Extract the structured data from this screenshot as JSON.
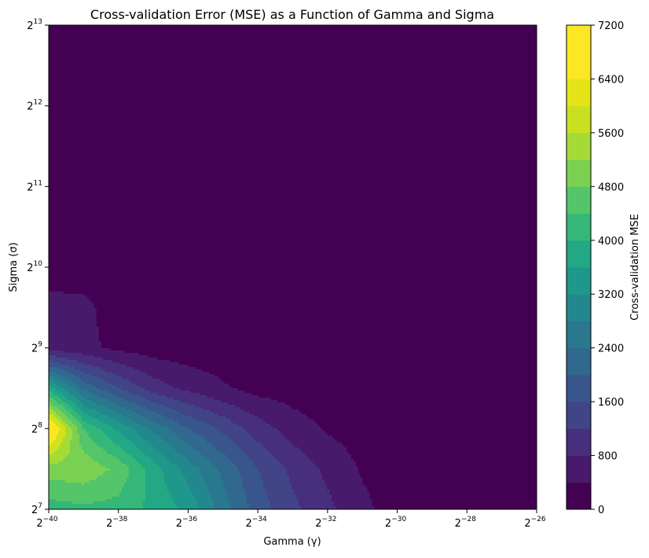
{
  "chart_data": {
    "type": "heatmap",
    "subtype": "filled-contour",
    "title": "Cross-validation Error (MSE) as a Function of Gamma and Sigma",
    "xlabel": "Gamma (γ)",
    "ylabel": "Sigma (σ)",
    "x_scale": "log2",
    "y_scale": "log2",
    "xlim_exponent": [
      -40,
      -26
    ],
    "ylim_exponent": [
      7,
      13
    ],
    "x_ticks": [
      {
        "base": "2",
        "exp": "−40"
      },
      {
        "base": "2",
        "exp": "−38"
      },
      {
        "base": "2",
        "exp": "−36"
      },
      {
        "base": "2",
        "exp": "−34"
      },
      {
        "base": "2",
        "exp": "−32"
      },
      {
        "base": "2",
        "exp": "−30"
      },
      {
        "base": "2",
        "exp": "−28"
      },
      {
        "base": "2",
        "exp": "−26"
      }
    ],
    "y_ticks": [
      {
        "base": "2",
        "exp": "7"
      },
      {
        "base": "2",
        "exp": "8"
      },
      {
        "base": "2",
        "exp": "9"
      },
      {
        "base": "2",
        "exp": "10"
      },
      {
        "base": "2",
        "exp": "11"
      },
      {
        "base": "2",
        "exp": "12"
      },
      {
        "base": "2",
        "exp": "13"
      }
    ],
    "x_exponents": [
      -40,
      -39,
      -38,
      -37,
      -36,
      -35,
      -34,
      -33,
      -32,
      -31,
      -30,
      -29,
      -28,
      -27,
      -26
    ],
    "y_exponents": [
      7,
      7.5,
      8,
      8.5,
      9,
      9.5,
      10,
      10.5,
      11,
      11.5,
      12,
      12.5,
      13
    ],
    "z_values": [
      [
        4200,
        4300,
        4250,
        3900,
        3500,
        2600,
        1800,
        1300,
        900,
        500,
        200,
        150,
        150,
        150,
        150
      ],
      [
        5000,
        5100,
        4700,
        3800,
        3000,
        2300,
        1600,
        1100,
        700,
        350,
        200,
        150,
        150,
        150,
        150
      ],
      [
        6800,
        4400,
        3500,
        2700,
        2000,
        1500,
        1000,
        600,
        350,
        200,
        150,
        150,
        150,
        150,
        150
      ],
      [
        3800,
        2300,
        1600,
        1000,
        700,
        450,
        250,
        200,
        150,
        150,
        150,
        150,
        150,
        150,
        150
      ],
      [
        600,
        500,
        300,
        200,
        150,
        150,
        150,
        150,
        150,
        150,
        150,
        150,
        150,
        150,
        150
      ],
      [
        560,
        520,
        150,
        150,
        150,
        150,
        150,
        150,
        150,
        150,
        150,
        150,
        150,
        150,
        150
      ],
      [
        150,
        150,
        150,
        150,
        150,
        150,
        150,
        150,
        150,
        150,
        150,
        150,
        150,
        150,
        150
      ],
      [
        150,
        150,
        150,
        150,
        150,
        150,
        150,
        150,
        150,
        150,
        150,
        150,
        150,
        150,
        150
      ],
      [
        150,
        150,
        150,
        150,
        150,
        150,
        150,
        150,
        150,
        150,
        150,
        150,
        150,
        150,
        150
      ],
      [
        150,
        150,
        150,
        150,
        150,
        150,
        150,
        150,
        150,
        150,
        150,
        150,
        150,
        150,
        150
      ],
      [
        150,
        150,
        150,
        150,
        150,
        150,
        150,
        150,
        150,
        150,
        150,
        150,
        150,
        150,
        150
      ],
      [
        150,
        150,
        150,
        150,
        150,
        150,
        150,
        150,
        150,
        150,
        150,
        150,
        150,
        150,
        150
      ],
      [
        150,
        150,
        150,
        150,
        150,
        150,
        150,
        150,
        150,
        150,
        150,
        150,
        150,
        150,
        150
      ]
    ],
    "levels": [
      0,
      400,
      800,
      1200,
      1600,
      2000,
      2400,
      2800,
      3200,
      3600,
      4000,
      4400,
      4800,
      5200,
      5600,
      6000,
      6400,
      6800,
      7200
    ],
    "level_colors": [
      "#440154",
      "#481a6c",
      "#472f7d",
      "#414487",
      "#39568c",
      "#31688e",
      "#2a788e",
      "#23888e",
      "#1f988b",
      "#22a884",
      "#35b779",
      "#54c568",
      "#7ad151",
      "#a5db36",
      "#d2e21b",
      "#fde725",
      "#fde725",
      "#fde725"
    ],
    "colorbar": {
      "label": "Cross-validation MSE",
      "ticks": [
        "0",
        "800",
        "1600",
        "2400",
        "3200",
        "4000",
        "4800",
        "5600",
        "6400",
        "7200"
      ],
      "range": [
        0,
        7200
      ],
      "colors": [
        "#440154",
        "#481a6c",
        "#472f7d",
        "#414487",
        "#39568c",
        "#31688e",
        "#2a788e",
        "#23888e",
        "#1f988b",
        "#22a884",
        "#35b779",
        "#54c568",
        "#7ad151",
        "#a5db36",
        "#c8e020",
        "#e5e419",
        "#fde725",
        "#fde725"
      ]
    },
    "colormap": "viridis",
    "grid": false
  }
}
